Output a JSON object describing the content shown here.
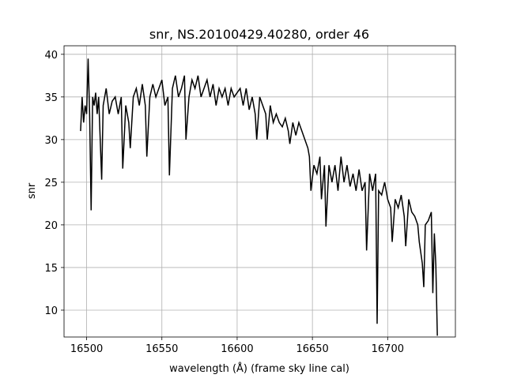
{
  "chart_data": {
    "type": "line",
    "title": "snr, NS.20100429.40280, order 46",
    "xlabel": "wavelength (Å) (frame sky line cal)",
    "ylabel": "snr",
    "xlim": [
      16485,
      16745
    ],
    "ylim": [
      6.85,
      41.0
    ],
    "xticks": [
      16500,
      16550,
      16600,
      16650,
      16700
    ],
    "yticks": [
      10,
      15,
      20,
      25,
      30,
      35,
      40
    ],
    "grid": true,
    "series": [
      {
        "name": "snr",
        "color": "#000000",
        "x": [
          16496,
          16497,
          16498,
          16499,
          16500,
          16501,
          16502,
          16503,
          16504,
          16505,
          16506,
          16507,
          16508,
          16510,
          16511,
          16513,
          16515,
          16517,
          16519,
          16521,
          16523,
          16524,
          16526,
          16528,
          16529,
          16531,
          16533,
          16535,
          16537,
          16539,
          16540,
          16542,
          16544,
          16546,
          16548,
          16550,
          16552,
          16554,
          16555,
          16557,
          16559,
          16561,
          16563,
          16565,
          16566,
          16568,
          16570,
          16572,
          16574,
          16576,
          16578,
          16580,
          16582,
          16584,
          16586,
          16588,
          16590,
          16592,
          16594,
          16596,
          16598,
          16600,
          16602,
          16604,
          16606,
          16608,
          16610,
          16612,
          16613,
          16615,
          16617,
          16619,
          16620,
          16622,
          16624,
          16626,
          16628,
          16630,
          16632,
          16634,
          16635,
          16637,
          16639,
          16641,
          16643,
          16645,
          16647,
          16648,
          16649,
          16651,
          16653,
          16655,
          16656,
          16658,
          16659,
          16661,
          16663,
          16665,
          16667,
          16669,
          16671,
          16673,
          16675,
          16677,
          16679,
          16681,
          16683,
          16685,
          16686,
          16688,
          16690,
          16692,
          16693,
          16694,
          16696,
          16698,
          16700,
          16702,
          16703,
          16705,
          16707,
          16709,
          16711,
          16712,
          16714,
          16716,
          16718,
          16720,
          16721,
          16723,
          16724,
          16725,
          16727,
          16729,
          16730,
          16731,
          16732,
          16733
        ],
        "values": [
          31,
          35,
          32,
          34,
          33,
          39.5,
          33,
          21.7,
          35,
          34,
          35.5,
          33,
          35,
          25.3,
          34,
          36,
          33,
          34.5,
          35,
          33,
          35,
          26.6,
          34,
          32,
          29,
          35,
          36,
          34,
          36.5,
          34,
          28,
          35,
          36.5,
          35,
          36,
          37,
          34,
          35,
          25.8,
          36,
          37.5,
          35,
          36,
          37.5,
          30,
          35,
          37,
          36,
          37.5,
          35,
          36,
          37,
          35,
          36.5,
          34,
          36,
          35,
          36,
          34,
          36,
          35,
          35.5,
          36,
          34,
          36,
          33.5,
          35,
          33,
          30,
          35,
          34,
          33,
          30,
          34,
          32,
          33,
          32,
          31.5,
          32.5,
          31,
          29.5,
          32,
          30.5,
          32,
          31,
          30,
          29,
          28,
          24,
          27,
          26,
          28,
          23,
          27,
          19.8,
          27,
          25,
          27,
          24,
          28,
          25,
          27,
          24.5,
          26,
          24,
          26.5,
          24,
          25,
          17,
          26,
          24,
          26,
          8.4,
          24,
          23.5,
          25,
          23,
          22,
          18,
          23,
          22,
          23.5,
          21,
          17.5,
          23,
          21.5,
          21,
          20,
          18,
          15.5,
          12.7,
          20,
          20.5,
          21.5,
          12,
          19,
          15.3,
          7.0
        ]
      }
    ]
  }
}
